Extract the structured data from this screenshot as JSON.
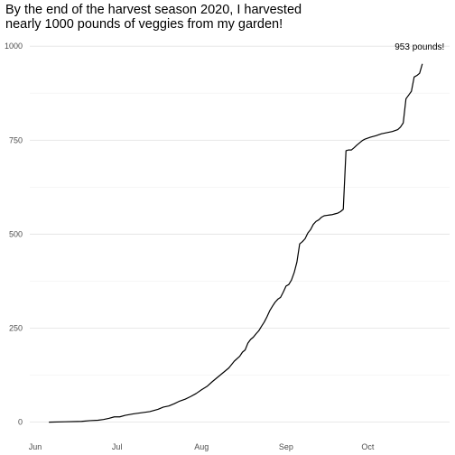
{
  "chart_data": {
    "type": "line",
    "title_lines": [
      "By the end of the harvest season 2020, I harvested",
      "nearly 1000 pounds of veggies from my garden!"
    ],
    "xlabel": "",
    "ylabel": "",
    "x_ticks": [
      {
        "label": "Jun",
        "date": "2020-06-01"
      },
      {
        "label": "Jul",
        "date": "2020-07-01"
      },
      {
        "label": "Aug",
        "date": "2020-08-01"
      },
      {
        "label": "Sep",
        "date": "2020-09-01"
      },
      {
        "label": "Oct",
        "date": "2020-10-01"
      }
    ],
    "y_ticks": [
      0,
      250,
      500,
      750,
      1000
    ],
    "xlim": [
      "2020-05-30",
      "2020-10-31"
    ],
    "ylim": [
      -25,
      1010
    ],
    "grid": true,
    "line_color": "#000000",
    "annotation": {
      "text": "953 pounds!",
      "date": "2020-10-20",
      "value": 1000
    },
    "series": [
      {
        "points": [
          [
            "2020-06-06",
            0
          ],
          [
            "2020-06-12",
            1
          ],
          [
            "2020-06-18",
            2
          ],
          [
            "2020-06-21",
            4
          ],
          [
            "2020-06-24",
            5
          ],
          [
            "2020-06-26",
            7
          ],
          [
            "2020-06-28",
            10
          ],
          [
            "2020-06-30",
            14
          ],
          [
            "2020-07-02",
            14
          ],
          [
            "2020-07-04",
            18
          ],
          [
            "2020-07-07",
            22
          ],
          [
            "2020-07-10",
            25
          ],
          [
            "2020-07-13",
            28
          ],
          [
            "2020-07-16",
            34
          ],
          [
            "2020-07-18",
            40
          ],
          [
            "2020-07-20",
            43
          ],
          [
            "2020-07-22",
            49
          ],
          [
            "2020-07-24",
            56
          ],
          [
            "2020-07-26",
            61
          ],
          [
            "2020-07-28",
            68
          ],
          [
            "2020-07-30",
            76
          ],
          [
            "2020-08-01",
            86
          ],
          [
            "2020-08-03",
            95
          ],
          [
            "2020-08-05",
            108
          ],
          [
            "2020-08-07",
            120
          ],
          [
            "2020-08-09",
            132
          ],
          [
            "2020-08-11",
            144
          ],
          [
            "2020-08-13",
            162
          ],
          [
            "2020-08-15",
            175
          ],
          [
            "2020-08-16",
            186
          ],
          [
            "2020-08-17",
            192
          ],
          [
            "2020-08-18",
            210
          ],
          [
            "2020-08-19",
            220
          ],
          [
            "2020-08-20",
            226
          ],
          [
            "2020-08-21",
            235
          ],
          [
            "2020-08-22",
            243
          ],
          [
            "2020-08-23",
            255
          ],
          [
            "2020-08-24",
            266
          ],
          [
            "2020-08-25",
            280
          ],
          [
            "2020-08-26",
            296
          ],
          [
            "2020-08-27",
            308
          ],
          [
            "2020-08-28",
            319
          ],
          [
            "2020-08-29",
            327
          ],
          [
            "2020-08-30",
            332
          ],
          [
            "2020-08-31",
            346
          ],
          [
            "2020-09-01",
            362
          ],
          [
            "2020-09-02",
            366
          ],
          [
            "2020-09-03",
            378
          ],
          [
            "2020-09-04",
            398
          ],
          [
            "2020-09-05",
            426
          ],
          [
            "2020-09-06",
            474
          ],
          [
            "2020-09-07",
            480
          ],
          [
            "2020-09-08",
            488
          ],
          [
            "2020-09-09",
            503
          ],
          [
            "2020-09-10",
            512
          ],
          [
            "2020-09-11",
            526
          ],
          [
            "2020-09-12",
            534
          ],
          [
            "2020-09-13",
            538
          ],
          [
            "2020-09-14",
            545
          ],
          [
            "2020-09-15",
            549
          ],
          [
            "2020-09-16",
            550
          ],
          [
            "2020-09-17",
            551
          ],
          [
            "2020-09-18",
            552
          ],
          [
            "2020-09-19",
            554
          ],
          [
            "2020-09-20",
            556
          ],
          [
            "2020-09-21",
            560
          ],
          [
            "2020-09-22",
            566
          ],
          [
            "2020-09-23",
            722
          ],
          [
            "2020-09-24",
            724
          ],
          [
            "2020-09-25",
            724
          ],
          [
            "2020-09-26",
            730
          ],
          [
            "2020-09-27",
            737
          ],
          [
            "2020-09-28",
            743
          ],
          [
            "2020-09-29",
            749
          ],
          [
            "2020-09-30",
            753
          ],
          [
            "2020-10-02",
            758
          ],
          [
            "2020-10-04",
            762
          ],
          [
            "2020-10-06",
            767
          ],
          [
            "2020-10-08",
            770
          ],
          [
            "2020-10-10",
            773
          ],
          [
            "2020-10-12",
            778
          ],
          [
            "2020-10-13",
            785
          ],
          [
            "2020-10-14",
            796
          ],
          [
            "2020-10-15",
            860
          ],
          [
            "2020-10-16",
            870
          ],
          [
            "2020-10-17",
            880
          ],
          [
            "2020-10-18",
            918
          ],
          [
            "2020-10-19",
            922
          ],
          [
            "2020-10-20",
            928
          ],
          [
            "2020-10-21",
            953
          ]
        ]
      }
    ]
  }
}
